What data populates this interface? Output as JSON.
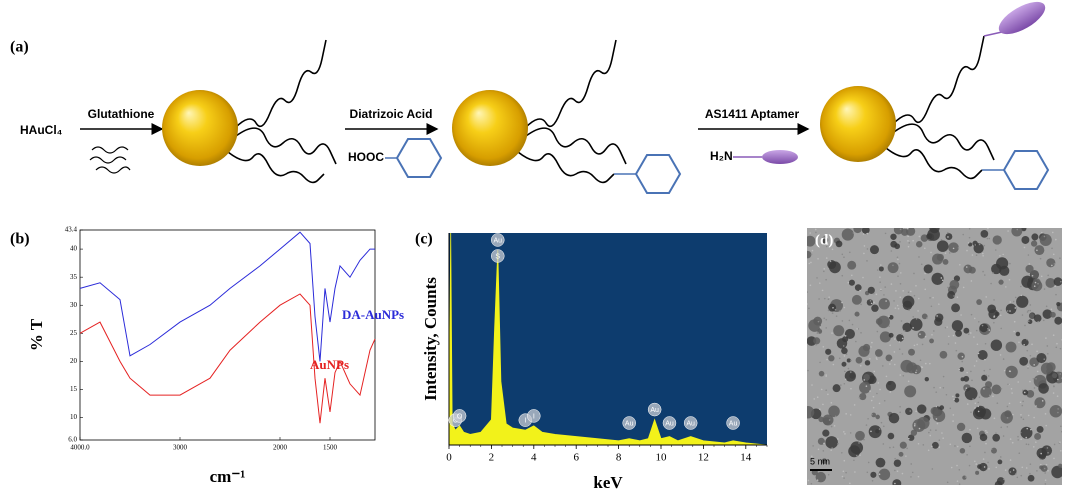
{
  "panel_labels": [
    "(a)",
    "(b)",
    "(c)",
    "(d)"
  ],
  "scheme": {
    "precursor": "HAuCl₄",
    "step1": "Glutathione",
    "step2": "Diatrizoic Acid",
    "reagent2": "HOOC",
    "step3": "AS1411 Aptamer",
    "reagent3": "H₂N"
  },
  "chart_data": [
    {
      "type": "line",
      "xlabel": "cm⁻¹",
      "ylabel": "% T",
      "x": [
        4000,
        3800,
        3600,
        3500,
        3300,
        3000,
        2700,
        2500,
        2200,
        2000,
        1800,
        1700,
        1650,
        1600,
        1550,
        1500,
        1450,
        1400,
        1300,
        1200,
        1100,
        1050
      ],
      "series": [
        {
          "name": "DA-AuNPs",
          "color": "#2b2bd9",
          "values": [
            33,
            34,
            31,
            21,
            23,
            27,
            30,
            33,
            37,
            40,
            43,
            41,
            28,
            20,
            33,
            27,
            33,
            37,
            35,
            38,
            40,
            40
          ]
        },
        {
          "name": "AuNPs",
          "color": "#e52222",
          "values": [
            25,
            27,
            20,
            17,
            14,
            14,
            17,
            22,
            27,
            30,
            32,
            30,
            17,
            9,
            17,
            11,
            18,
            20,
            16,
            14,
            22,
            24
          ]
        }
      ],
      "xlim": [
        4000,
        1050
      ],
      "ylim": [
        6,
        43.4
      ],
      "xticks": [
        {
          "value": 4000,
          "label": "4000.0"
        },
        3000,
        2000,
        1500
      ],
      "yticks": [
        {
          "value": 6,
          "label": "6.0"
        },
        10,
        15,
        20,
        25,
        30,
        35,
        40,
        43.4
      ]
    },
    {
      "type": "area",
      "xlabel": "keV",
      "ylabel": "Intensity, Counts",
      "color": "#f2f21a",
      "background": "#0d3c6e",
      "x": [
        0,
        0.08,
        0.15,
        0.3,
        0.5,
        0.7,
        1,
        1.5,
        2.0,
        2.15,
        2.3,
        2.45,
        2.7,
        3,
        3.6,
        4.0,
        4.4,
        5,
        6,
        7,
        8,
        8.5,
        9,
        9.4,
        9.7,
        10,
        10.4,
        10.8,
        11.4,
        12,
        13,
        13.4,
        14,
        15
      ],
      "values": [
        0,
        100,
        10,
        7,
        9,
        6,
        5,
        6,
        12,
        55,
        92,
        30,
        10,
        8,
        7,
        9,
        6,
        5,
        4,
        3,
        2,
        3,
        2,
        3,
        12,
        3,
        4,
        2,
        4,
        2,
        1,
        2,
        1,
        0
      ],
      "xlim": [
        0,
        15
      ],
      "ylim": [
        0,
        100
      ],
      "xticks": [
        0,
        2,
        4,
        6,
        8,
        10,
        12,
        14
      ],
      "peak_labels": [
        {
          "label": "C",
          "x": 0.3
        },
        {
          "label": "O",
          "x": 0.5
        },
        {
          "label": "S",
          "x": 2.3
        },
        {
          "label": "Au",
          "x": 2.3
        },
        {
          "label": "I",
          "x": 3.6
        },
        {
          "label": "I",
          "x": 4.0
        },
        {
          "label": "Au",
          "x": 8.5
        },
        {
          "label": "Au",
          "x": 9.7
        },
        {
          "label": "Au",
          "x": 10.4
        },
        {
          "label": "Au",
          "x": 11.4
        },
        {
          "label": "Au",
          "x": 13.4
        }
      ]
    }
  ],
  "tem": {
    "scale_bar": "5 nm"
  }
}
